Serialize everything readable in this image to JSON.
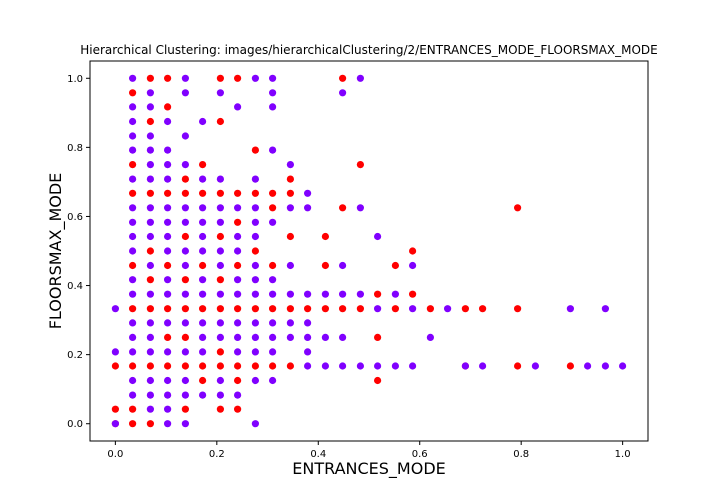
{
  "chart_data": {
    "type": "scatter",
    "title": "Hierarchical Clustering: images/hierarchicalClustering/2/ENTRANCES_MODE_FLOORSMAX_MODE",
    "xlabel": "ENTRANCES_MODE",
    "ylabel": "FLOORSMAX_MODE",
    "xlim": [
      -0.05,
      1.05
    ],
    "ylim": [
      -0.05,
      1.05
    ],
    "xticks": [
      0.0,
      0.2,
      0.4,
      0.6,
      0.8,
      1.0
    ],
    "yticks": [
      0.0,
      0.2,
      0.4,
      0.6,
      0.8,
      1.0
    ],
    "xtick_labels": [
      "0.0",
      "0.2",
      "0.4",
      "0.6",
      "0.8",
      "1.0"
    ],
    "ytick_labels": [
      "0.0",
      "0.2",
      "0.4",
      "0.6",
      "0.8",
      "1.0"
    ],
    "grid": false,
    "series": [
      {
        "color": "#ff0000",
        "points": [
          [
            0.0,
            0.0
          ],
          [
            0.0,
            0.042
          ],
          [
            0.0,
            0.167
          ],
          [
            0.034,
            0.0
          ],
          [
            0.034,
            0.042
          ],
          [
            0.034,
            0.167
          ],
          [
            0.034,
            0.333
          ],
          [
            0.034,
            0.458
          ],
          [
            0.034,
            0.667
          ],
          [
            0.034,
            0.75
          ],
          [
            0.034,
            0.958
          ],
          [
            0.069,
            0.0
          ],
          [
            0.069,
            0.167
          ],
          [
            0.069,
            0.333
          ],
          [
            0.069,
            0.417
          ],
          [
            0.069,
            0.5
          ],
          [
            0.069,
            0.667
          ],
          [
            0.069,
            0.875
          ],
          [
            0.069,
            1.0
          ],
          [
            0.103,
            0.167
          ],
          [
            0.103,
            0.25
          ],
          [
            0.103,
            0.333
          ],
          [
            0.103,
            0.458
          ],
          [
            0.103,
            0.667
          ],
          [
            0.103,
            0.917
          ],
          [
            0.103,
            1.0
          ],
          [
            0.138,
            0.042
          ],
          [
            0.138,
            0.167
          ],
          [
            0.138,
            0.25
          ],
          [
            0.138,
            0.333
          ],
          [
            0.138,
            0.417
          ],
          [
            0.138,
            0.542
          ],
          [
            0.138,
            0.667
          ],
          [
            0.138,
            0.708
          ],
          [
            0.172,
            0.125
          ],
          [
            0.172,
            0.167
          ],
          [
            0.172,
            0.333
          ],
          [
            0.172,
            0.458
          ],
          [
            0.172,
            0.667
          ],
          [
            0.172,
            0.75
          ],
          [
            0.207,
            0.042
          ],
          [
            0.207,
            0.167
          ],
          [
            0.207,
            0.208
          ],
          [
            0.207,
            0.333
          ],
          [
            0.207,
            0.417
          ],
          [
            0.207,
            0.542
          ],
          [
            0.207,
            0.667
          ],
          [
            0.207,
            0.875
          ],
          [
            0.207,
            1.0
          ],
          [
            0.241,
            0.042
          ],
          [
            0.241,
            0.125
          ],
          [
            0.241,
            0.167
          ],
          [
            0.241,
            0.333
          ],
          [
            0.241,
            0.458
          ],
          [
            0.241,
            0.583
          ],
          [
            0.241,
            0.667
          ],
          [
            0.241,
            1.0
          ],
          [
            0.276,
            0.167
          ],
          [
            0.276,
            0.333
          ],
          [
            0.276,
            0.5
          ],
          [
            0.276,
            0.667
          ],
          [
            0.276,
            0.792
          ],
          [
            0.31,
            0.167
          ],
          [
            0.31,
            0.333
          ],
          [
            0.31,
            0.458
          ],
          [
            0.31,
            0.625
          ],
          [
            0.31,
            0.667
          ],
          [
            0.345,
            0.167
          ],
          [
            0.345,
            0.333
          ],
          [
            0.345,
            0.542
          ],
          [
            0.345,
            0.667
          ],
          [
            0.345,
            0.708
          ],
          [
            0.379,
            0.333
          ],
          [
            0.414,
            0.333
          ],
          [
            0.414,
            0.458
          ],
          [
            0.414,
            0.542
          ],
          [
            0.448,
            0.333
          ],
          [
            0.448,
            0.625
          ],
          [
            0.448,
            1.0
          ],
          [
            0.483,
            0.333
          ],
          [
            0.483,
            0.75
          ],
          [
            0.517,
            0.125
          ],
          [
            0.517,
            0.25
          ],
          [
            0.517,
            0.375
          ],
          [
            0.552,
            0.333
          ],
          [
            0.552,
            0.458
          ],
          [
            0.586,
            0.375
          ],
          [
            0.586,
            0.5
          ],
          [
            0.621,
            0.333
          ],
          [
            0.69,
            0.167
          ],
          [
            0.69,
            0.333
          ],
          [
            0.724,
            0.333
          ],
          [
            0.793,
            0.167
          ],
          [
            0.793,
            0.333
          ],
          [
            0.793,
            0.625
          ],
          [
            0.897,
            0.167
          ]
        ]
      },
      {
        "color": "#8000ff",
        "points": [
          [
            0.0,
            0.0
          ],
          [
            0.0,
            0.208
          ],
          [
            0.0,
            0.333
          ],
          [
            0.034,
            0.083
          ],
          [
            0.034,
            0.125
          ],
          [
            0.034,
            0.208
          ],
          [
            0.034,
            0.25
          ],
          [
            0.034,
            0.292
          ],
          [
            0.034,
            0.375
          ],
          [
            0.034,
            0.417
          ],
          [
            0.034,
            0.5
          ],
          [
            0.034,
            0.542
          ],
          [
            0.034,
            0.583
          ],
          [
            0.034,
            0.625
          ],
          [
            0.034,
            0.708
          ],
          [
            0.034,
            0.792
          ],
          [
            0.034,
            0.833
          ],
          [
            0.034,
            0.875
          ],
          [
            0.034,
            0.917
          ],
          [
            0.034,
            1.0
          ],
          [
            0.069,
            0.042
          ],
          [
            0.069,
            0.083
          ],
          [
            0.069,
            0.125
          ],
          [
            0.069,
            0.208
          ],
          [
            0.069,
            0.25
          ],
          [
            0.069,
            0.292
          ],
          [
            0.069,
            0.375
          ],
          [
            0.069,
            0.458
          ],
          [
            0.069,
            0.542
          ],
          [
            0.069,
            0.583
          ],
          [
            0.069,
            0.625
          ],
          [
            0.069,
            0.708
          ],
          [
            0.069,
            0.75
          ],
          [
            0.069,
            0.792
          ],
          [
            0.069,
            0.833
          ],
          [
            0.069,
            0.917
          ],
          [
            0.069,
            0.958
          ],
          [
            0.103,
            0.0
          ],
          [
            0.103,
            0.042
          ],
          [
            0.103,
            0.083
          ],
          [
            0.103,
            0.125
          ],
          [
            0.103,
            0.208
          ],
          [
            0.103,
            0.292
          ],
          [
            0.103,
            0.375
          ],
          [
            0.103,
            0.417
          ],
          [
            0.103,
            0.5
          ],
          [
            0.103,
            0.542
          ],
          [
            0.103,
            0.583
          ],
          [
            0.103,
            0.625
          ],
          [
            0.103,
            0.708
          ],
          [
            0.103,
            0.75
          ],
          [
            0.103,
            0.792
          ],
          [
            0.103,
            0.875
          ],
          [
            0.138,
            0.0
          ],
          [
            0.138,
            0.083
          ],
          [
            0.138,
            0.125
          ],
          [
            0.138,
            0.208
          ],
          [
            0.138,
            0.292
          ],
          [
            0.138,
            0.375
          ],
          [
            0.138,
            0.458
          ],
          [
            0.138,
            0.5
          ],
          [
            0.138,
            0.583
          ],
          [
            0.138,
            0.625
          ],
          [
            0.138,
            0.75
          ],
          [
            0.138,
            0.833
          ],
          [
            0.138,
            0.958
          ],
          [
            0.138,
            1.0
          ],
          [
            0.172,
            0.083
          ],
          [
            0.172,
            0.208
          ],
          [
            0.172,
            0.25
          ],
          [
            0.172,
            0.292
          ],
          [
            0.172,
            0.375
          ],
          [
            0.172,
            0.417
          ],
          [
            0.172,
            0.5
          ],
          [
            0.172,
            0.542
          ],
          [
            0.172,
            0.583
          ],
          [
            0.172,
            0.625
          ],
          [
            0.172,
            0.708
          ],
          [
            0.172,
            0.875
          ],
          [
            0.207,
            0.083
          ],
          [
            0.207,
            0.125
          ],
          [
            0.207,
            0.25
          ],
          [
            0.207,
            0.292
          ],
          [
            0.207,
            0.375
          ],
          [
            0.207,
            0.458
          ],
          [
            0.207,
            0.5
          ],
          [
            0.207,
            0.583
          ],
          [
            0.207,
            0.625
          ],
          [
            0.207,
            0.708
          ],
          [
            0.207,
            0.958
          ],
          [
            0.241,
            0.083
          ],
          [
            0.241,
            0.208
          ],
          [
            0.241,
            0.25
          ],
          [
            0.241,
            0.292
          ],
          [
            0.241,
            0.375
          ],
          [
            0.241,
            0.417
          ],
          [
            0.241,
            0.5
          ],
          [
            0.241,
            0.542
          ],
          [
            0.241,
            0.625
          ],
          [
            0.241,
            0.917
          ],
          [
            0.276,
            0.0
          ],
          [
            0.276,
            0.125
          ],
          [
            0.276,
            0.208
          ],
          [
            0.276,
            0.25
          ],
          [
            0.276,
            0.292
          ],
          [
            0.276,
            0.375
          ],
          [
            0.276,
            0.417
          ],
          [
            0.276,
            0.458
          ],
          [
            0.276,
            0.542
          ],
          [
            0.276,
            0.583
          ],
          [
            0.276,
            0.625
          ],
          [
            0.276,
            0.708
          ],
          [
            0.276,
            1.0
          ],
          [
            0.31,
            0.125
          ],
          [
            0.31,
            0.208
          ],
          [
            0.31,
            0.25
          ],
          [
            0.31,
            0.292
          ],
          [
            0.31,
            0.375
          ],
          [
            0.31,
            0.417
          ],
          [
            0.31,
            0.583
          ],
          [
            0.31,
            0.792
          ],
          [
            0.31,
            0.917
          ],
          [
            0.31,
            0.958
          ],
          [
            0.31,
            1.0
          ],
          [
            0.345,
            0.25
          ],
          [
            0.345,
            0.292
          ],
          [
            0.345,
            0.375
          ],
          [
            0.345,
            0.458
          ],
          [
            0.345,
            0.625
          ],
          [
            0.345,
            0.75
          ],
          [
            0.379,
            0.167
          ],
          [
            0.379,
            0.208
          ],
          [
            0.379,
            0.25
          ],
          [
            0.379,
            0.292
          ],
          [
            0.379,
            0.375
          ],
          [
            0.379,
            0.625
          ],
          [
            0.379,
            0.667
          ],
          [
            0.414,
            0.167
          ],
          [
            0.414,
            0.25
          ],
          [
            0.414,
            0.375
          ],
          [
            0.448,
            0.167
          ],
          [
            0.448,
            0.25
          ],
          [
            0.448,
            0.375
          ],
          [
            0.448,
            0.458
          ],
          [
            0.448,
            0.958
          ],
          [
            0.483,
            0.167
          ],
          [
            0.483,
            0.375
          ],
          [
            0.483,
            0.625
          ],
          [
            0.483,
            1.0
          ],
          [
            0.517,
            0.167
          ],
          [
            0.517,
            0.333
          ],
          [
            0.517,
            0.542
          ],
          [
            0.552,
            0.167
          ],
          [
            0.552,
            0.375
          ],
          [
            0.586,
            0.167
          ],
          [
            0.586,
            0.333
          ],
          [
            0.586,
            0.458
          ],
          [
            0.621,
            0.25
          ],
          [
            0.655,
            0.333
          ],
          [
            0.69,
            0.167
          ],
          [
            0.724,
            0.167
          ],
          [
            0.828,
            0.167
          ],
          [
            0.897,
            0.333
          ],
          [
            0.931,
            0.167
          ],
          [
            0.966,
            0.167
          ],
          [
            0.966,
            0.333
          ],
          [
            1.0,
            0.167
          ]
        ]
      }
    ]
  }
}
